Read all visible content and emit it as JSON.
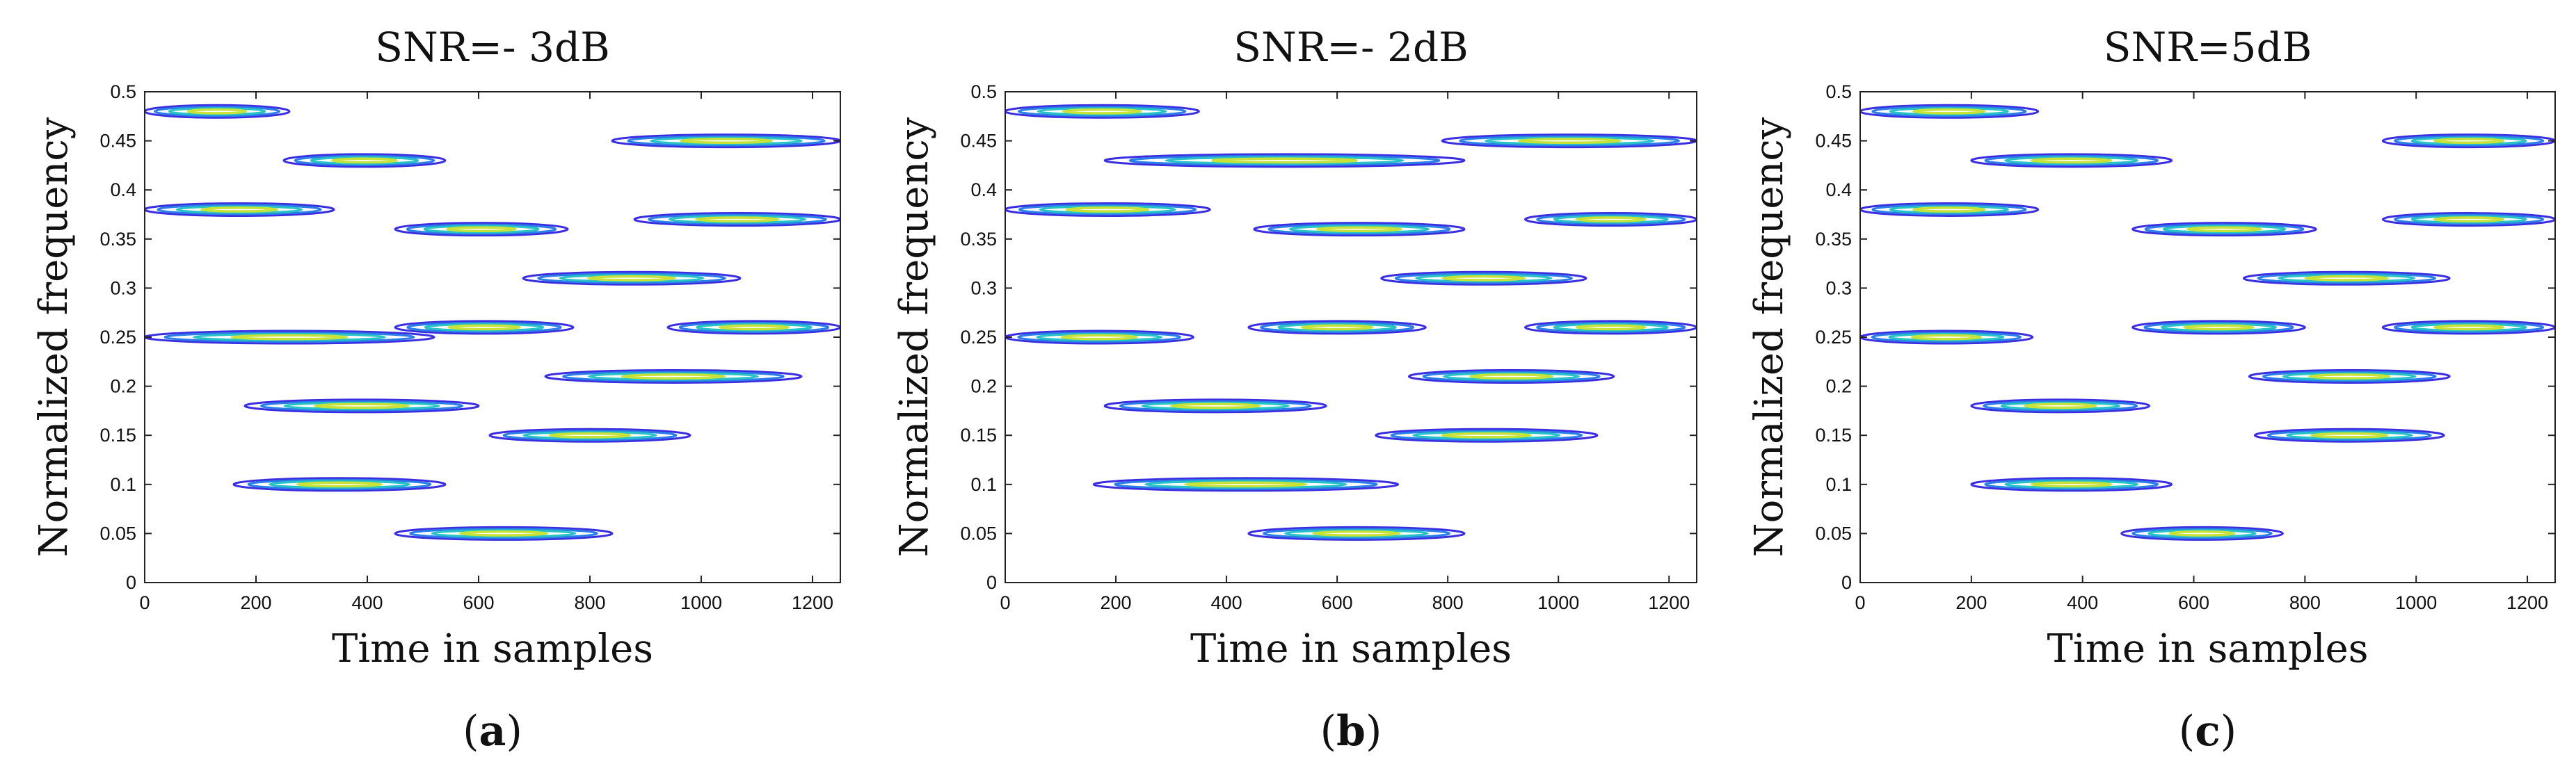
{
  "chart_data": [
    {
      "type": "contour",
      "title": "SNR=- 3dB",
      "xlabel": "Time in samples",
      "ylabel": "Normalized frequency",
      "caption_open": "(",
      "caption_letter": "a",
      "caption_close": ")",
      "xlim": [
        0,
        1250
      ],
      "ylim": [
        0,
        0.5
      ],
      "xticks": [
        0,
        200,
        400,
        600,
        800,
        1000,
        1200
      ],
      "yticks": [
        0,
        0.05,
        0.1,
        0.15,
        0.2,
        0.25,
        0.3,
        0.35,
        0.4,
        0.45,
        0.5
      ],
      "components": [
        {
          "t_start": 0,
          "t_end": 260,
          "f": 0.48
        },
        {
          "t_start": 0,
          "t_end": 340,
          "f": 0.38
        },
        {
          "t_start": 0,
          "t_end": 520,
          "f": 0.25
        },
        {
          "t_start": 180,
          "t_end": 600,
          "f": 0.18
        },
        {
          "t_start": 160,
          "t_end": 540,
          "f": 0.1
        },
        {
          "t_start": 250,
          "t_end": 540,
          "f": 0.43
        },
        {
          "t_start": 450,
          "t_end": 760,
          "f": 0.36
        },
        {
          "t_start": 450,
          "t_end": 770,
          "f": 0.26
        },
        {
          "t_start": 450,
          "t_end": 840,
          "f": 0.05
        },
        {
          "t_start": 620,
          "t_end": 980,
          "f": 0.15
        },
        {
          "t_start": 680,
          "t_end": 1070,
          "f": 0.31
        },
        {
          "t_start": 720,
          "t_end": 1180,
          "f": 0.21
        },
        {
          "t_start": 840,
          "t_end": 1250,
          "f": 0.45
        },
        {
          "t_start": 880,
          "t_end": 1250,
          "f": 0.37
        },
        {
          "t_start": 940,
          "t_end": 1250,
          "f": 0.26
        }
      ]
    },
    {
      "type": "contour",
      "title": "SNR=- 2dB",
      "xlabel": "Time in samples",
      "ylabel": "Normalized frequency",
      "caption_open": "(",
      "caption_letter": "b",
      "caption_close": ")",
      "xlim": [
        0,
        1250
      ],
      "ylim": [
        0,
        0.5
      ],
      "xticks": [
        0,
        200,
        400,
        600,
        800,
        1000,
        1200
      ],
      "yticks": [
        0,
        0.05,
        0.1,
        0.15,
        0.2,
        0.25,
        0.3,
        0.35,
        0.4,
        0.45,
        0.5
      ],
      "components": [
        {
          "t_start": 0,
          "t_end": 350,
          "f": 0.48
        },
        {
          "t_start": 0,
          "t_end": 370,
          "f": 0.38
        },
        {
          "t_start": 0,
          "t_end": 340,
          "f": 0.25
        },
        {
          "t_start": 180,
          "t_end": 580,
          "f": 0.18
        },
        {
          "t_start": 160,
          "t_end": 710,
          "f": 0.1
        },
        {
          "t_start": 180,
          "t_end": 830,
          "f": 0.43
        },
        {
          "t_start": 450,
          "t_end": 830,
          "f": 0.36
        },
        {
          "t_start": 440,
          "t_end": 760,
          "f": 0.26
        },
        {
          "t_start": 440,
          "t_end": 830,
          "f": 0.05
        },
        {
          "t_start": 670,
          "t_end": 1070,
          "f": 0.15
        },
        {
          "t_start": 680,
          "t_end": 1050,
          "f": 0.31
        },
        {
          "t_start": 730,
          "t_end": 1100,
          "f": 0.21
        },
        {
          "t_start": 790,
          "t_end": 1250,
          "f": 0.45
        },
        {
          "t_start": 940,
          "t_end": 1250,
          "f": 0.37
        },
        {
          "t_start": 940,
          "t_end": 1250,
          "f": 0.26
        }
      ]
    },
    {
      "type": "contour",
      "title": "SNR=5dB",
      "xlabel": "Time in samples",
      "ylabel": "Normalized frequency",
      "caption_open": "(",
      "caption_letter": "c",
      "caption_close": ")",
      "xlim": [
        0,
        1250
      ],
      "ylim": [
        0,
        0.5
      ],
      "xticks": [
        0,
        200,
        400,
        600,
        800,
        1000,
        1200
      ],
      "yticks": [
        0,
        0.05,
        0.1,
        0.15,
        0.2,
        0.25,
        0.3,
        0.35,
        0.4,
        0.45,
        0.5
      ],
      "components": [
        {
          "t_start": 0,
          "t_end": 320,
          "f": 0.48
        },
        {
          "t_start": 0,
          "t_end": 320,
          "f": 0.38
        },
        {
          "t_start": 0,
          "t_end": 310,
          "f": 0.25
        },
        {
          "t_start": 200,
          "t_end": 520,
          "f": 0.18
        },
        {
          "t_start": 200,
          "t_end": 560,
          "f": 0.1
        },
        {
          "t_start": 200,
          "t_end": 560,
          "f": 0.43
        },
        {
          "t_start": 490,
          "t_end": 820,
          "f": 0.36
        },
        {
          "t_start": 490,
          "t_end": 800,
          "f": 0.26
        },
        {
          "t_start": 470,
          "t_end": 760,
          "f": 0.05
        },
        {
          "t_start": 710,
          "t_end": 1050,
          "f": 0.15
        },
        {
          "t_start": 690,
          "t_end": 1060,
          "f": 0.31
        },
        {
          "t_start": 700,
          "t_end": 1060,
          "f": 0.21
        },
        {
          "t_start": 940,
          "t_end": 1250,
          "f": 0.45
        },
        {
          "t_start": 940,
          "t_end": 1250,
          "f": 0.37
        },
        {
          "t_start": 940,
          "t_end": 1250,
          "f": 0.26
        }
      ]
    }
  ],
  "colors": {
    "outer": "#3b2ee0",
    "mid": "#2a7ee8",
    "inner": "#27c3c5",
    "core": "#c8e23a",
    "axis": "#222222"
  }
}
